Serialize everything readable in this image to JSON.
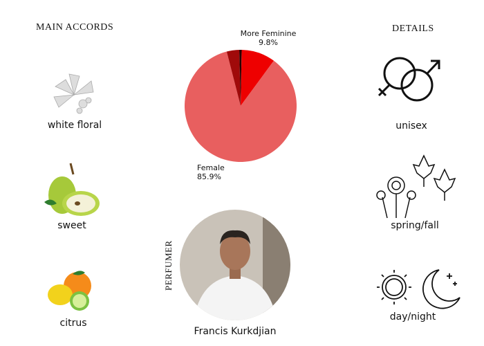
{
  "headers": {
    "accords": "MAIN ACCORDS",
    "details": "DETAILS",
    "perfumer": "PERFUMER"
  },
  "accords": [
    {
      "label": "white floral",
      "icon": "white-flower-icon"
    },
    {
      "label": "sweet",
      "icon": "pear-icon"
    },
    {
      "label": "citrus",
      "icon": "citrus-icon"
    }
  ],
  "details": [
    {
      "label": "unisex",
      "icon": "gender-icon"
    },
    {
      "label": "spring/fall",
      "icon": "flowers-leaves-icon"
    },
    {
      "label": "day/night",
      "icon": "sun-moon-icon"
    }
  ],
  "perfumer": {
    "name": "Francis Kurkdjian"
  },
  "chart_data": {
    "type": "pie",
    "slices": [
      {
        "label": "",
        "value": 0.3,
        "color": "#1a0000"
      },
      {
        "label": "More Feminine",
        "pct": "9.8%",
        "value": 9.8,
        "color": "#ee0000"
      },
      {
        "label": "Female",
        "pct": "85.9%",
        "value": 85.9,
        "color": "#e85f5f"
      },
      {
        "label": "",
        "value": 3.6,
        "color": "#a00a0a"
      },
      {
        "label": "",
        "value": 0.4,
        "color": "#330000"
      }
    ]
  }
}
